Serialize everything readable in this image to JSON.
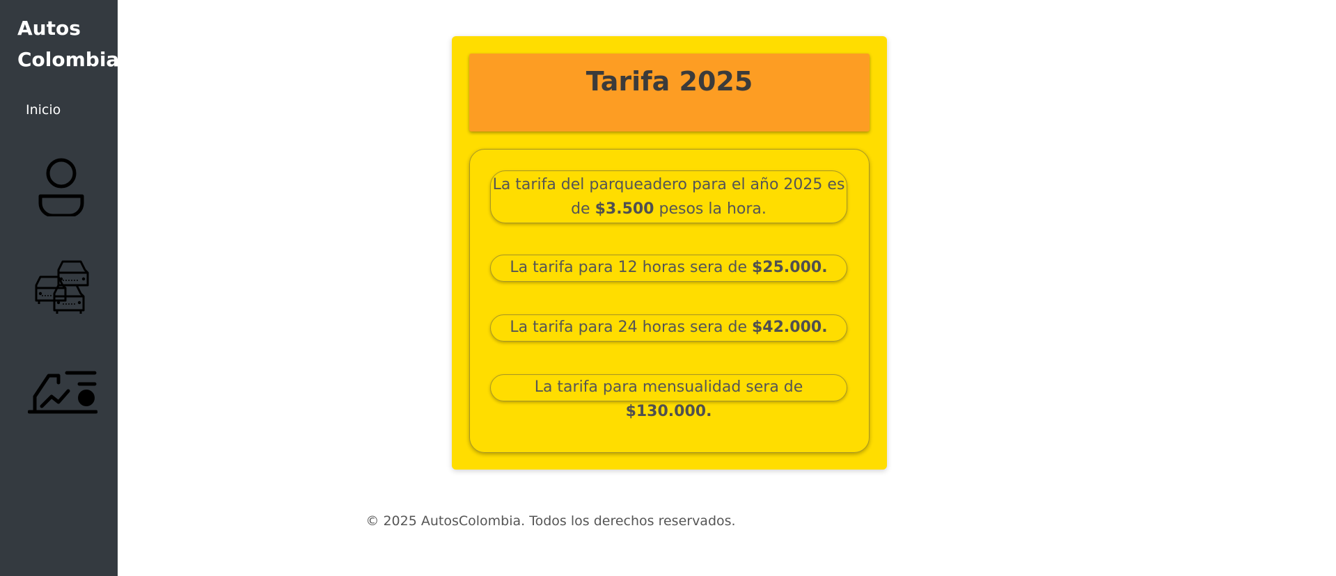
{
  "sidebar": {
    "brand_line1": "Autos",
    "brand_line2": "Colombia",
    "nav_home": "Inicio",
    "icons": [
      "user-icon",
      "cars-icon",
      "parking-driver-icon"
    ]
  },
  "card": {
    "title": "Tarifa 2025",
    "rates": {
      "hourly_prefix": "La tarifa del parqueadero para el año 2025 es de ",
      "hourly_value": "$3.500",
      "hourly_suffix": " pesos la hora.",
      "h12_prefix": "La tarifa para 12 horas sera de ",
      "h12_value": "$25.000.",
      "h24_prefix": "La tarifa para 24 horas sera de ",
      "h24_value": "$42.000.",
      "monthly_prefix": "La tarifa para mensualidad sera de ",
      "monthly_value": "$130.000."
    }
  },
  "footer": {
    "text": "© 2025 AutosColombia. Todos los derechos reservados."
  },
  "colors": {
    "sidebar_bg": "#343a40",
    "card_bg": "#ffdd00",
    "header_bg": "#fd9d23"
  }
}
